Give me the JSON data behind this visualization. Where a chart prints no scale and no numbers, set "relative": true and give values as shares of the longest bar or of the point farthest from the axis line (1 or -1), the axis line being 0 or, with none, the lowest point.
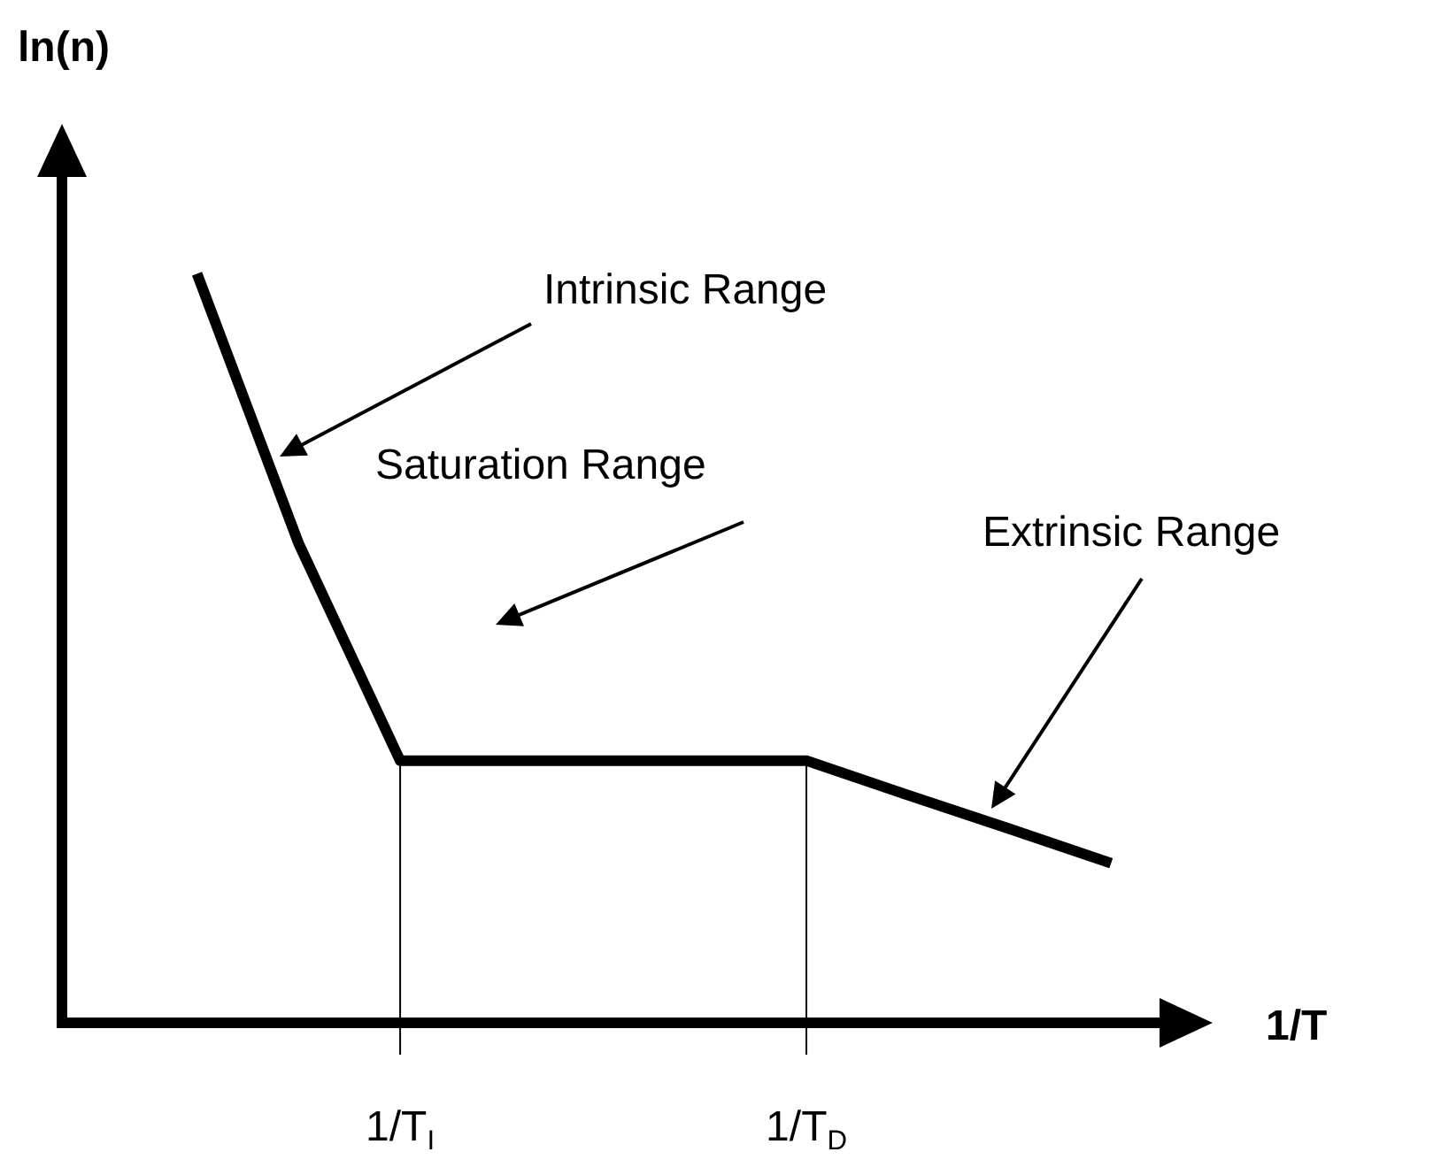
{
  "chart_data": {
    "type": "line",
    "relative": true,
    "xlabel": "1/T",
    "ylabel": "ln(n)",
    "categories": [
      null,
      null,
      "1/T$_{I}$",
      null,
      null,
      null,
      "1/T$_{D}$",
      null,
      null,
      null
    ],
    "series": [
      {
        "color": "#000000",
        "values": [
          1,
          0.64,
          0.35,
          0.35,
          0.35,
          0.35,
          0.35,
          0.304,
          0.259,
          0.213
        ]
      }
    ],
    "ref_lines": [
      {
        "axis": "x",
        "value": "1/T$_{I}$",
        "color": "#000000"
      },
      {
        "axis": "x",
        "value": "1/T$_{D}$",
        "color": "#000000"
      }
    ],
    "annotations": [
      "Intrinsic Range",
      "Saturation Range",
      "Extrinsic Range"
    ],
    "grid": false,
    "legend": false,
    "marker": "none",
    "line_style": "solid"
  }
}
